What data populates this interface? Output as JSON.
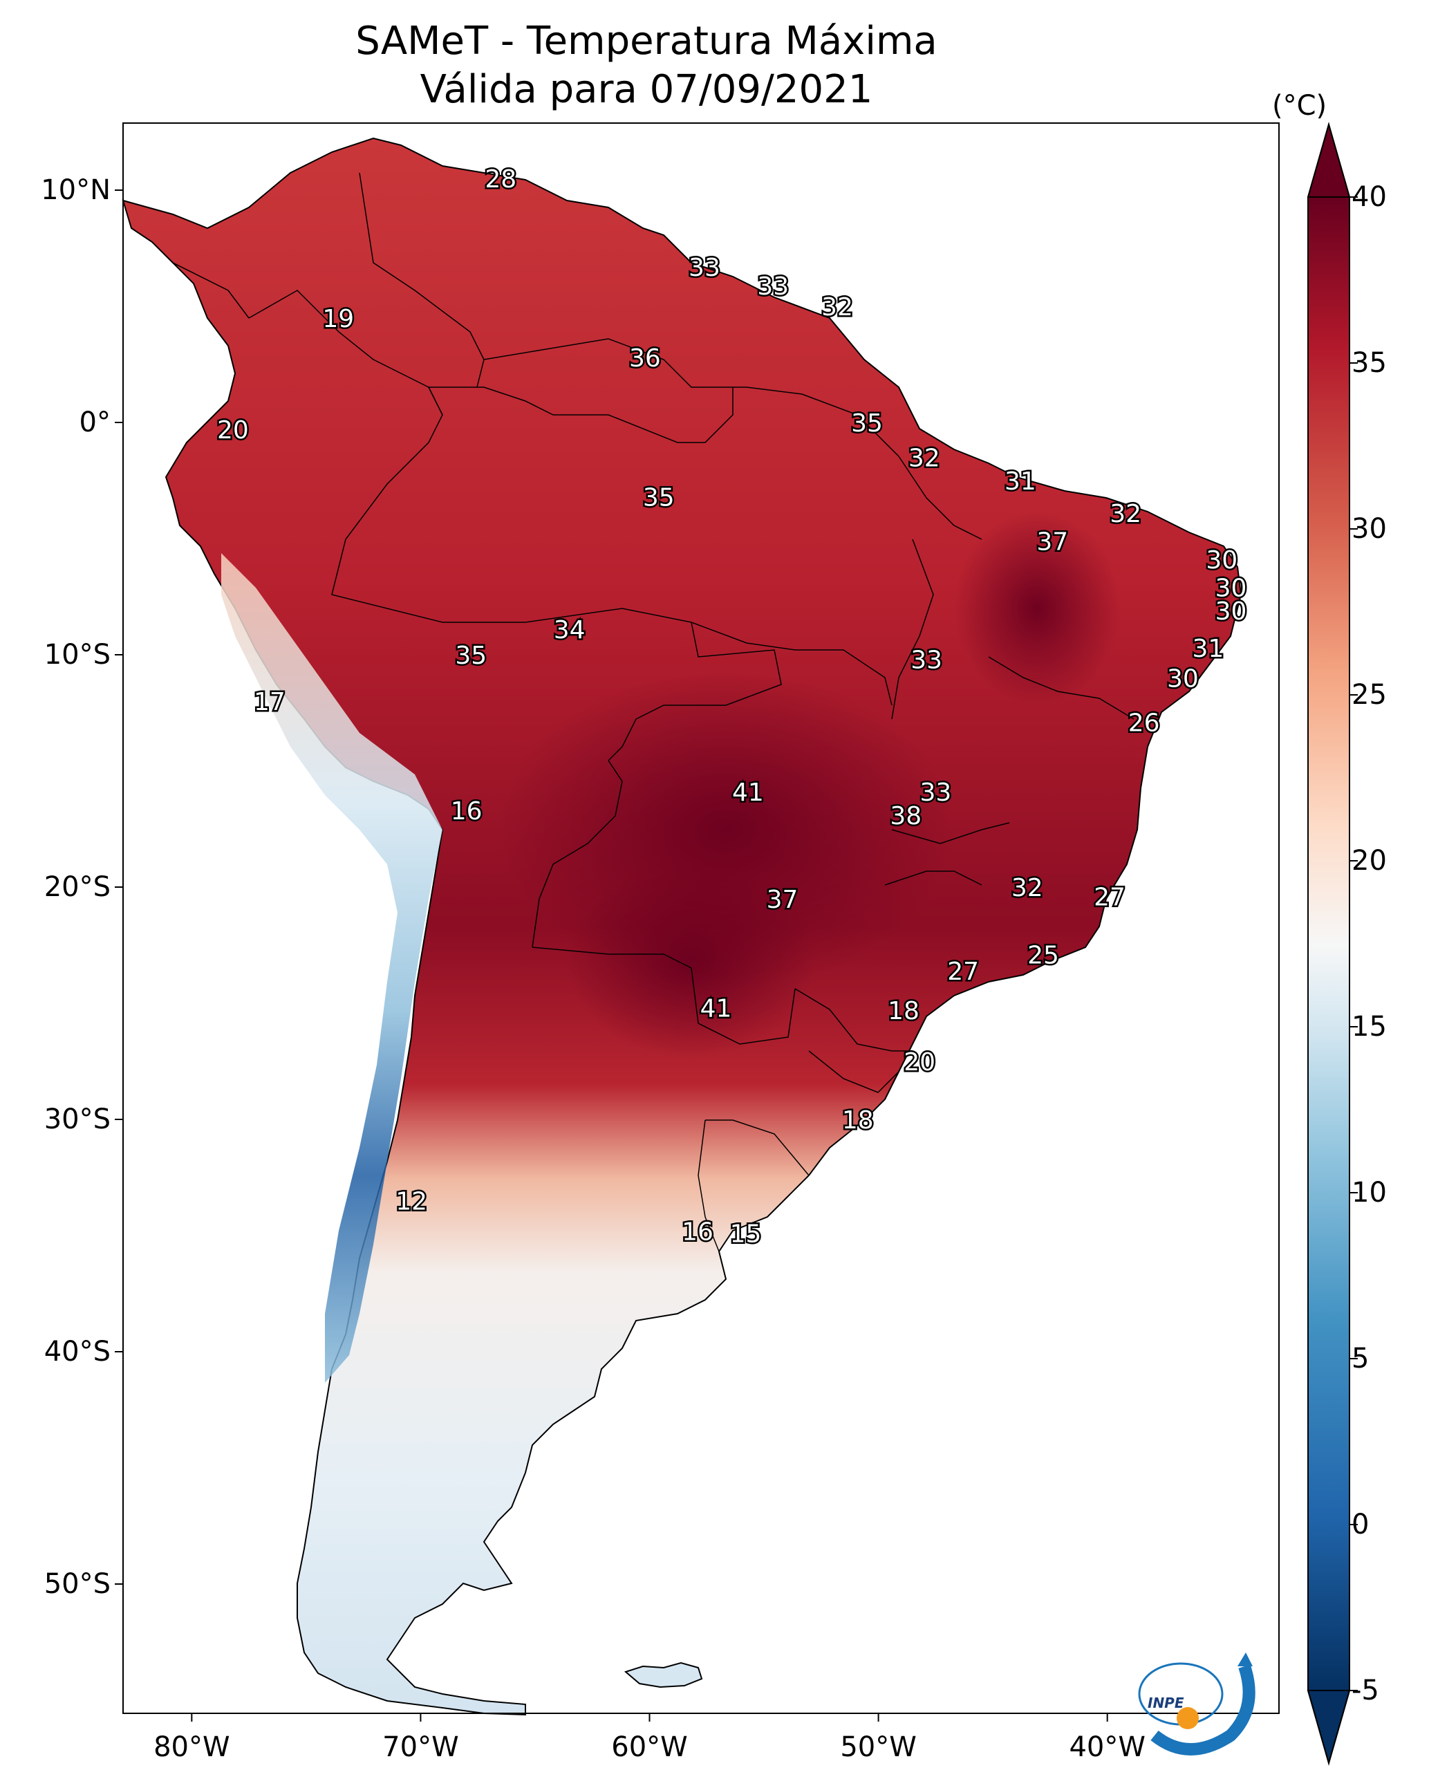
{
  "title": {
    "line1": "SAMeT - Temperatura Máxima",
    "line2": "Válida para 07/09/2021"
  },
  "lat_labels": [
    "10°N",
    "0°",
    "10°S",
    "20°S",
    "30°S",
    "40°S",
    "50°S"
  ],
  "lon_labels": [
    "80°W",
    "70°W",
    "60°W",
    "50°W",
    "40°W"
  ],
  "colorbar": {
    "unit": "(°C)",
    "ticks": [
      "40",
      "35",
      "30",
      "25",
      "20",
      "15",
      "10",
      "5",
      "0",
      "-5"
    ],
    "range": [
      -5,
      40
    ]
  },
  "point_labels": [
    {
      "text": "28",
      "lon": -66.5,
      "lat": 10.5
    },
    {
      "text": "19",
      "lon": -73.6,
      "lat": 4.5
    },
    {
      "text": "20",
      "lon": -78.2,
      "lat": -0.3
    },
    {
      "text": "33",
      "lon": -57.6,
      "lat": 6.7
    },
    {
      "text": "33",
      "lon": -54.6,
      "lat": 5.9
    },
    {
      "text": "32",
      "lon": -51.8,
      "lat": 5.0
    },
    {
      "text": "36",
      "lon": -60.2,
      "lat": 2.8
    },
    {
      "text": "35",
      "lon": -50.5,
      "lat": 0.0
    },
    {
      "text": "32",
      "lon": -48.0,
      "lat": -1.5
    },
    {
      "text": "35",
      "lon": -59.6,
      "lat": -3.2
    },
    {
      "text": "31",
      "lon": -43.8,
      "lat": -2.5
    },
    {
      "text": "32",
      "lon": -39.2,
      "lat": -3.9
    },
    {
      "text": "37",
      "lon": -42.4,
      "lat": -5.1
    },
    {
      "text": "30",
      "lon": -35.0,
      "lat": -5.9
    },
    {
      "text": "30",
      "lon": -34.6,
      "lat": -7.1
    },
    {
      "text": "30",
      "lon": -34.6,
      "lat": -8.1
    },
    {
      "text": "31",
      "lon": -35.6,
      "lat": -9.7
    },
    {
      "text": "30",
      "lon": -36.7,
      "lat": -11.0
    },
    {
      "text": "26",
      "lon": -38.4,
      "lat": -12.9
    },
    {
      "text": "34",
      "lon": -63.5,
      "lat": -8.9
    },
    {
      "text": "35",
      "lon": -67.8,
      "lat": -10.0
    },
    {
      "text": "33",
      "lon": -47.9,
      "lat": -10.2
    },
    {
      "text": "17",
      "lon": -76.6,
      "lat": -12.0
    },
    {
      "text": "41",
      "lon": -55.7,
      "lat": -15.9
    },
    {
      "text": "33",
      "lon": -47.5,
      "lat": -15.9
    },
    {
      "text": "38",
      "lon": -48.8,
      "lat": -16.9
    },
    {
      "text": "16",
      "lon": -68.0,
      "lat": -16.7
    },
    {
      "text": "32",
      "lon": -43.5,
      "lat": -20.0
    },
    {
      "text": "27",
      "lon": -39.9,
      "lat": -20.4
    },
    {
      "text": "37",
      "lon": -54.2,
      "lat": -20.5
    },
    {
      "text": "25",
      "lon": -42.8,
      "lat": -22.9
    },
    {
      "text": "27",
      "lon": -46.3,
      "lat": -23.6
    },
    {
      "text": "41",
      "lon": -57.1,
      "lat": -25.2
    },
    {
      "text": "18",
      "lon": -48.9,
      "lat": -25.3
    },
    {
      "text": "20",
      "lon": -48.2,
      "lat": -27.5
    },
    {
      "text": "18",
      "lon": -50.9,
      "lat": -30.0
    },
    {
      "text": "12",
      "lon": -70.4,
      "lat": -33.5
    },
    {
      "text": "16",
      "lon": -57.9,
      "lat": -34.8
    },
    {
      "text": "15",
      "lon": -55.8,
      "lat": -34.9
    }
  ]
}
